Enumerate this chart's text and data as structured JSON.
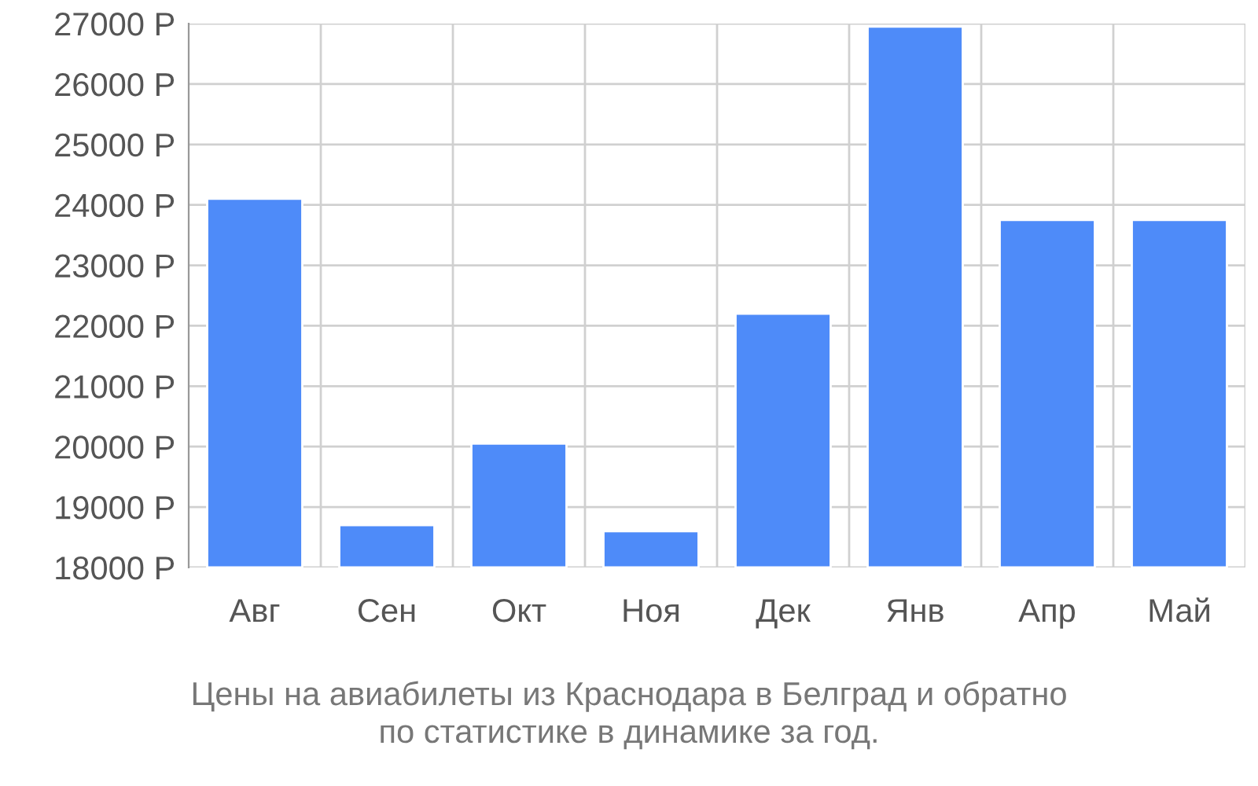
{
  "chart_data": {
    "type": "bar",
    "categories": [
      "Авг",
      "Сен",
      "Окт",
      "Ноя",
      "Дек",
      "Янв",
      "Апр",
      "Май"
    ],
    "values": [
      24100,
      18700,
      20050,
      18600,
      22200,
      26950,
      23750,
      23750
    ],
    "color": "#4e8bf9",
    "ylim": [
      18000,
      27000
    ],
    "yticks": [
      {
        "value": 18000,
        "label": "18000 Р"
      },
      {
        "value": 19000,
        "label": "19000 Р"
      },
      {
        "value": 20000,
        "label": "20000 Р"
      },
      {
        "value": 21000,
        "label": "21000 Р"
      },
      {
        "value": 22000,
        "label": "22000 Р"
      },
      {
        "value": 23000,
        "label": "23000 Р"
      },
      {
        "value": 24000,
        "label": "24000 Р"
      },
      {
        "value": 25000,
        "label": "25000 Р"
      },
      {
        "value": 26000,
        "label": "26000 Р"
      },
      {
        "value": 27000,
        "label": "27000 Р"
      }
    ],
    "grid": true,
    "annotations": [
      "Цены на авиабилеты из Краснодара в Белград и обратно\nпо статистике в динамике за год."
    ]
  }
}
